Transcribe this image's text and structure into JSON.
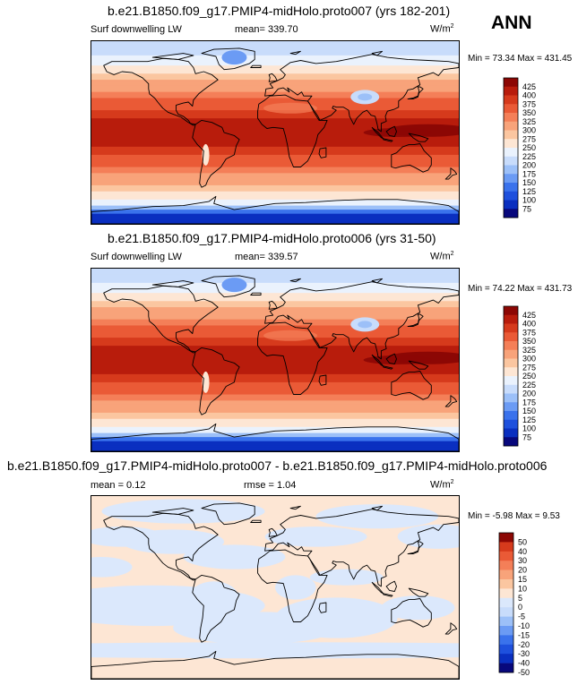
{
  "season": "ANN",
  "units_base": "W/m",
  "units_exp": "2",
  "panels": [
    {
      "title": "b.e21.B1850.f09_g17.PMIP4-midHolo.proto007 (yrs 182-201)",
      "left_label": "Surf downwelling LW",
      "mean_label": "mean=",
      "mean_value": "339.70",
      "minmax_text": "Min = 73.34 Max = 431.45"
    },
    {
      "title": "b.e21.B1850.f09_g17.PMIP4-midHolo.proto006 (yrs 31-50)",
      "left_label": "Surf downwelling LW",
      "mean_label": "mean=",
      "mean_value": "339.57",
      "minmax_text": "Min = 74.22 Max = 431.73"
    },
    {
      "title": "b.e21.B1850.f09_g17.PMIP4-midHolo.proto007 - b.e21.B1850.f09_g17.PMIP4-midHolo.proto006",
      "left_label": "mean =   0.12",
      "mean_label": "rmse =   1.04",
      "mean_value": "",
      "minmax_text": "Min = -5.98 Max =   9.53"
    }
  ],
  "colors": {
    "abs_scale": [
      "#08087c",
      "#0a2fc0",
      "#1e50dd",
      "#3a72ec",
      "#6b9bf4",
      "#9cc0f8",
      "#c8dcfb",
      "#eaf2fd",
      "#fde6d4",
      "#fbc6a0",
      "#f8a37a",
      "#f47f58",
      "#ea5a36",
      "#d63a1c",
      "#b81c0c",
      "#8c0704"
    ],
    "diff_scale": [
      "#08087c",
      "#0a2fc0",
      "#1e50dd",
      "#3a72ec",
      "#6b9bf4",
      "#9cc0f8",
      "#c8dcfb",
      "#dbe8fc",
      "#fde6d4",
      "#fbc6a0",
      "#f8a37a",
      "#f47f58",
      "#ea5a36",
      "#d63a1c",
      "#8c0704"
    ]
  },
  "chart_data": [
    {
      "type": "heatmap",
      "title": "b.e21.B1850.f09_g17.PMIP4-midHolo.proto007 (yrs 182-201)",
      "variable": "Surf downwelling LW",
      "units": "W/m2",
      "mean": 339.7,
      "min": 73.34,
      "max": 431.45,
      "colorbar_ticks": [
        "425",
        "400",
        "375",
        "350",
        "325",
        "300",
        "275",
        "250",
        "225",
        "200",
        "175",
        "150",
        "125",
        "100",
        "75"
      ],
      "colorbar_levels": [
        75,
        100,
        125,
        150,
        175,
        200,
        225,
        250,
        275,
        300,
        325,
        350,
        375,
        400,
        425
      ],
      "domain": "global map, lon -180..180, lat -90..90"
    },
    {
      "type": "heatmap",
      "title": "b.e21.B1850.f09_g17.PMIP4-midHolo.proto006 (yrs 31-50)",
      "variable": "Surf downwelling LW",
      "units": "W/m2",
      "mean": 339.57,
      "min": 74.22,
      "max": 431.73,
      "colorbar_ticks": [
        "425",
        "400",
        "375",
        "350",
        "325",
        "300",
        "275",
        "250",
        "225",
        "200",
        "175",
        "150",
        "125",
        "100",
        "75"
      ],
      "colorbar_levels": [
        75,
        100,
        125,
        150,
        175,
        200,
        225,
        250,
        275,
        300,
        325,
        350,
        375,
        400,
        425
      ],
      "domain": "global map, lon -180..180, lat -90..90"
    },
    {
      "type": "heatmap",
      "title": "b.e21.B1850.f09_g17.PMIP4-midHolo.proto007 - b.e21.B1850.f09_g17.PMIP4-midHolo.proto006",
      "units": "W/m2",
      "mean": 0.12,
      "rmse": 1.04,
      "min": -5.98,
      "max": 9.53,
      "colorbar_ticks": [
        "50",
        "40",
        "30",
        "20",
        "15",
        "10",
        "5",
        "0",
        "-5",
        "-10",
        "-15",
        "-20",
        "-30",
        "-40",
        "-50"
      ],
      "colorbar_levels": [
        -50,
        -40,
        -30,
        -20,
        -15,
        -10,
        -5,
        0,
        5,
        10,
        15,
        20,
        30,
        40,
        50
      ],
      "domain": "global map, lon -180..180, lat -90..90"
    }
  ]
}
